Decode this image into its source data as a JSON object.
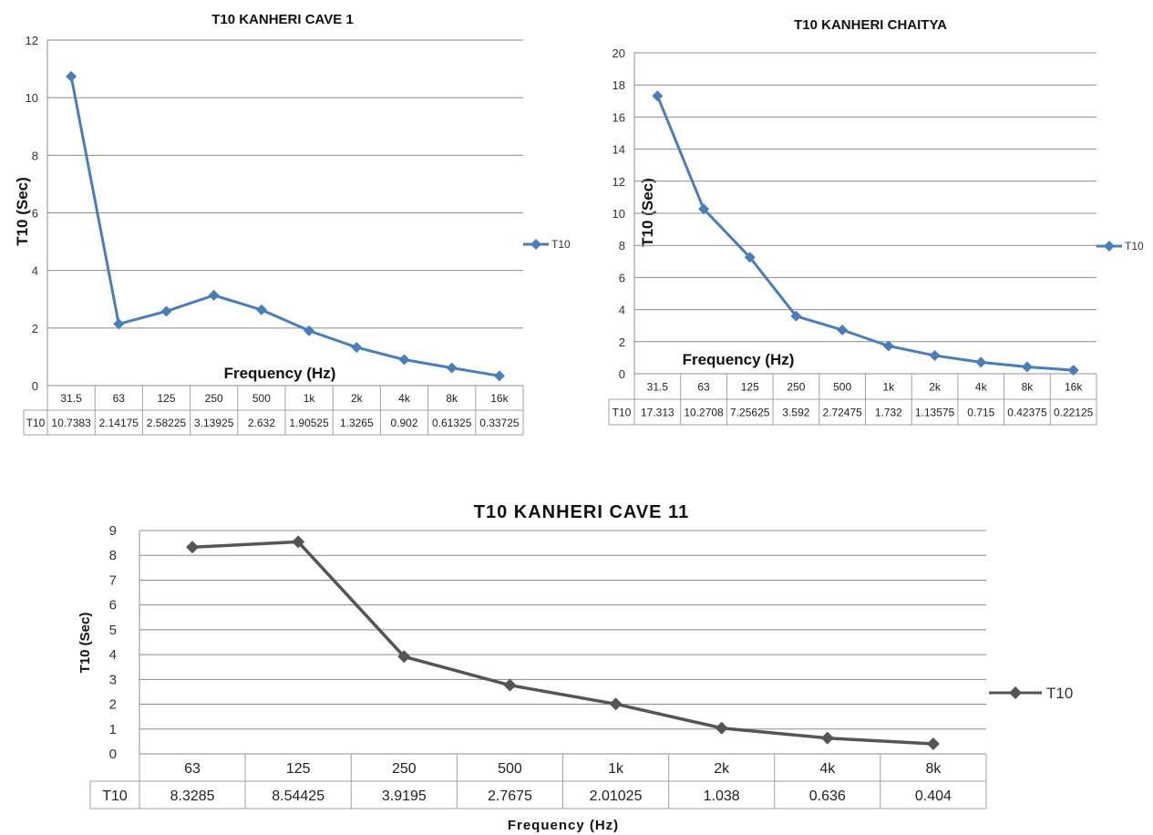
{
  "colors": {
    "series_blue": "#4a7ebb",
    "series_gray": "#555555",
    "grid": "#8c8c8c",
    "table_border": "#a0a0a0"
  },
  "chart_data": [
    {
      "type": "line",
      "title": "T10 KANHERI CAVE 1",
      "xlabel": "Frequency (Hz)",
      "ylabel": "T10 (Sec)",
      "ylim": [
        0,
        12
      ],
      "ystep": 2,
      "yticks": [
        "0",
        "2",
        "4",
        "6",
        "8",
        "10",
        "12"
      ],
      "grid": true,
      "legend_position": "right",
      "categories": [
        "31.5",
        "63",
        "125",
        "250",
        "500",
        "1k",
        "2k",
        "4k",
        "8k",
        "16k"
      ],
      "series": [
        {
          "name": "T10",
          "values": [
            10.7383,
            2.14175,
            2.58225,
            3.13925,
            2.632,
            1.90525,
            1.3265,
            0.902,
            0.61325,
            0.33725
          ]
        }
      ],
      "table_labels": [
        "10.7383",
        "2.14175",
        "2.58225",
        "3.13925",
        "2.632",
        "1.90525",
        "1.3265",
        "0.902",
        "0.61325",
        "0.33725"
      ]
    },
    {
      "type": "line",
      "title": "T10 KANHERI CHAITYA",
      "xlabel": "Frequency (Hz)",
      "ylabel": "T10 (Sec)",
      "ylim": [
        0,
        20
      ],
      "ystep": 2,
      "yticks": [
        "0",
        "2",
        "4",
        "6",
        "8",
        "10",
        "12",
        "14",
        "16",
        "18",
        "20"
      ],
      "grid": true,
      "legend_position": "right",
      "categories": [
        "31.5",
        "63",
        "125",
        "250",
        "500",
        "1k",
        "2k",
        "4k",
        "8k",
        "16k"
      ],
      "series": [
        {
          "name": "T10",
          "values": [
            17.313,
            10.2708,
            7.25625,
            3.592,
            2.72475,
            1.732,
            1.13575,
            0.715,
            0.42375,
            0.22125
          ]
        }
      ],
      "table_labels": [
        "17.313",
        "10.2708",
        "7.25625",
        "3.592",
        "2.72475",
        "1.732",
        "1.13575",
        "0.715",
        "0.42375",
        "0.22125"
      ]
    },
    {
      "type": "line",
      "title": "T10 KANHERI CAVE 11",
      "xlabel": "Frequency (Hz)",
      "ylabel": "T10 (Sec)",
      "ylim": [
        0,
        9
      ],
      "ystep": 1,
      "yticks": [
        "0",
        "1",
        "2",
        "3",
        "4",
        "5",
        "6",
        "7",
        "8",
        "9"
      ],
      "grid": true,
      "legend_position": "right",
      "categories": [
        "63",
        "125",
        "250",
        "500",
        "1k",
        "2k",
        "4k",
        "8k"
      ],
      "series": [
        {
          "name": "T10",
          "values": [
            8.3285,
            8.54425,
            3.9195,
            2.7675,
            2.01025,
            1.038,
            0.636,
            0.404
          ]
        }
      ],
      "table_labels": [
        "8.3285",
        "8.54425",
        "3.9195",
        "2.7675",
        "2.01025",
        "1.038",
        "0.636",
        "0.404"
      ]
    }
  ]
}
